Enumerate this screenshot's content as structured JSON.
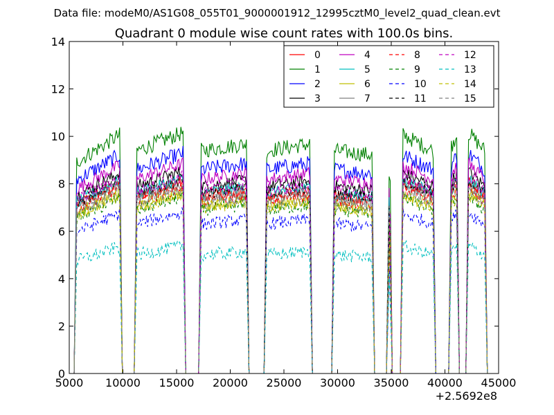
{
  "figure": {
    "suptitle": "Data file: modeM0/AS1G08_055T01_9000001912_12995cztM0_level2_quad_clean.evt"
  },
  "chart_data": {
    "type": "line",
    "title": "Quadrant 0 module wise count rates with 100.0s bins.",
    "xlabel": "",
    "ylabel": "",
    "xlim": [
      5000,
      45000
    ],
    "ylim": [
      0,
      14
    ],
    "x_offset_label": "+2.5692e8",
    "x_ticks": [
      5000,
      10000,
      15000,
      20000,
      25000,
      30000,
      35000,
      40000,
      45000
    ],
    "x_tick_labels": [
      "5000",
      "10000",
      "15000",
      "20000",
      "25000",
      "30000",
      "35000",
      "40000",
      "45000"
    ],
    "y_ticks": [
      0,
      2,
      4,
      6,
      8,
      10,
      12,
      14
    ],
    "y_tick_labels": [
      "0",
      "2",
      "4",
      "6",
      "8",
      "10",
      "12",
      "14"
    ],
    "grid": false,
    "legend_position": "top-right",
    "legend_columns": 4,
    "bin_seconds": 100,
    "segments": [
      {
        "start": 5700,
        "end": 9700
      },
      {
        "start": 11300,
        "end": 15600
      },
      {
        "start": 17300,
        "end": 21500
      },
      {
        "start": 23400,
        "end": 27400
      },
      {
        "start": 29700,
        "end": 33200
      },
      {
        "start": 34800,
        "end": 34850
      },
      {
        "start": 36100,
        "end": 38900
      },
      {
        "start": 40600,
        "end": 41100
      },
      {
        "start": 42200,
        "end": 43700
      }
    ],
    "segment_start_factors": [
      0.95,
      1.0,
      1.0,
      1.0,
      1.0,
      0.88,
      1.07,
      1.02,
      1.08
    ],
    "segment_end_factors": [
      1.07,
      1.08,
      1.03,
      1.03,
      0.98,
      0.88,
      1.0,
      1.07,
      1.0
    ],
    "series": [
      {
        "name": "0",
        "color": "#ff0000",
        "dash": "solid",
        "level": 7.5
      },
      {
        "name": "1",
        "color": "#008000",
        "dash": "solid",
        "level": 9.4
      },
      {
        "name": "2",
        "color": "#0000ff",
        "dash": "solid",
        "level": 8.6
      },
      {
        "name": "3",
        "color": "#000000",
        "dash": "solid",
        "level": 7.9
      },
      {
        "name": "4",
        "color": "#bf00bf",
        "dash": "solid",
        "level": 8.2
      },
      {
        "name": "5",
        "color": "#00bfbf",
        "dash": "solid",
        "level": 7.6
      },
      {
        "name": "6",
        "color": "#bfbf00",
        "dash": "solid",
        "level": 7.1
      },
      {
        "name": "7",
        "color": "#808080",
        "dash": "solid",
        "level": 7.4
      },
      {
        "name": "8",
        "color": "#ff0000",
        "dash": "dashed",
        "level": 7.3
      },
      {
        "name": "9",
        "color": "#008000",
        "dash": "dashed",
        "level": 6.9
      },
      {
        "name": "10",
        "color": "#0000ff",
        "dash": "dashed",
        "level": 6.3
      },
      {
        "name": "11",
        "color": "#000000",
        "dash": "dashed",
        "level": 7.6
      },
      {
        "name": "12",
        "color": "#bf00bf",
        "dash": "dashed",
        "level": 7.7
      },
      {
        "name": "13",
        "color": "#00bfbf",
        "dash": "dashed",
        "level": 5.0
      },
      {
        "name": "14",
        "color": "#bfbf00",
        "dash": "dashed",
        "level": 7.0
      },
      {
        "name": "15",
        "color": "#808080",
        "dash": "dashed",
        "level": 7.2
      }
    ]
  }
}
